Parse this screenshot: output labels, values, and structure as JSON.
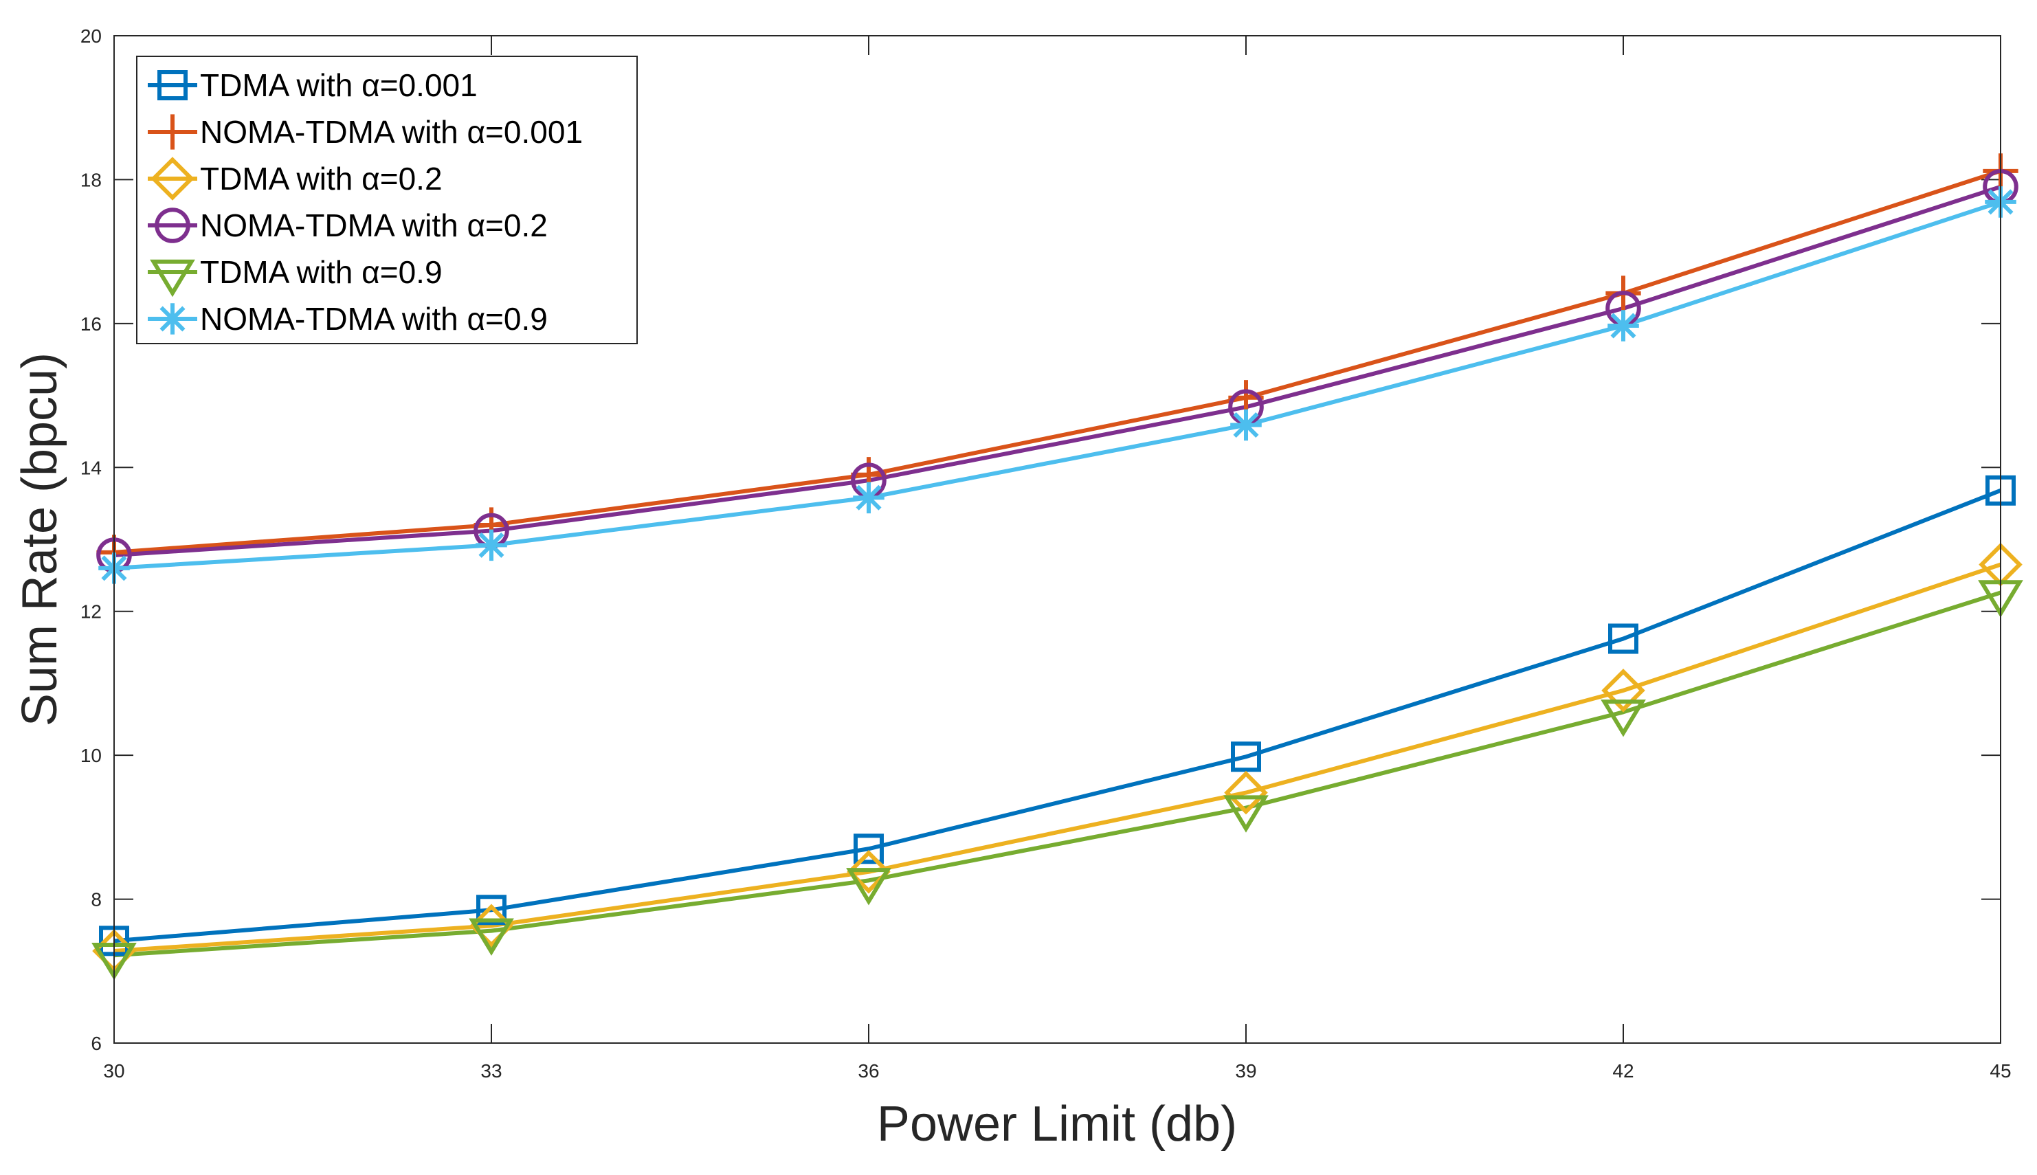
{
  "chart_data": {
    "type": "line",
    "title": "",
    "xlabel": "Power Limit (db)",
    "ylabel": "Sum Rate (bpcu)",
    "x": [
      30,
      33,
      36,
      39,
      42,
      45
    ],
    "xlim": [
      30,
      45
    ],
    "ylim": [
      6,
      20
    ],
    "xticks": [
      "30",
      "33",
      "36",
      "39",
      "42",
      "45"
    ],
    "yticks": [
      "6",
      "8",
      "10",
      "12",
      "14",
      "16",
      "18",
      "20"
    ],
    "grid": false,
    "legend_position": "top-left",
    "series": [
      {
        "name": "TDMA with α=0.001",
        "color": "#0072BD",
        "marker": "square",
        "values": [
          7.42,
          7.85,
          8.7,
          9.98,
          11.62,
          13.68
        ]
      },
      {
        "name": "NOMA-TDMA with α=0.001",
        "color": "#D95319",
        "marker": "plus",
        "values": [
          12.82,
          13.2,
          13.9,
          14.97,
          16.42,
          18.12
        ]
      },
      {
        "name": "TDMA with α=0.2",
        "color": "#EDB120",
        "marker": "diamond",
        "values": [
          7.28,
          7.63,
          8.38,
          9.48,
          10.9,
          12.65
        ]
      },
      {
        "name": "NOMA-TDMA with α=0.2",
        "color": "#7E2F8E",
        "marker": "circle",
        "values": [
          12.78,
          13.12,
          13.82,
          14.84,
          16.21,
          17.9
        ]
      },
      {
        "name": "TDMA with α=0.9",
        "color": "#77AC30",
        "marker": "triangle-down",
        "values": [
          7.22,
          7.56,
          8.26,
          9.27,
          10.6,
          12.26
        ]
      },
      {
        "name": "NOMA-TDMA with α=0.9",
        "color": "#4DBEEE",
        "marker": "asterisk",
        "values": [
          12.6,
          12.92,
          13.58,
          14.59,
          15.97,
          17.69
        ]
      }
    ]
  }
}
